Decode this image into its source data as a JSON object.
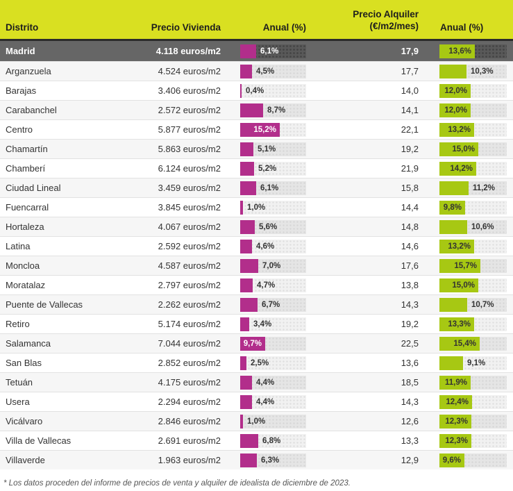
{
  "table": {
    "header": {
      "district": "Distrito",
      "price": "Precio Vivienda",
      "annual_sale": "Anual (%)",
      "rent_line1": "Precio Alquiler",
      "rent_line2": "(€/m2/mes)",
      "annual_rent": "Anual (%)"
    },
    "footnote": "* Los datos proceden del informe de precios de venta y alquiler de idealista de diciembre de 2023."
  },
  "colors": {
    "header_bg": "#d9e021",
    "sale_bar": "#b22e8b",
    "rent_bar": "#a7c813",
    "highlight_row_bg": "#666666"
  },
  "chart_data": {
    "type": "table",
    "columns": [
      "Distrito",
      "Precio Vivienda",
      "Anual (%)",
      "Precio Alquiler (€/m2/mes)",
      "Anual (%)"
    ],
    "bar_columns": {
      "annual_sale_pct": {
        "color": "#b22e8b",
        "range": [
          0,
          15.7
        ]
      },
      "annual_rent_pct": {
        "color": "#a7c813",
        "range": [
          0,
          15.7
        ]
      }
    },
    "rows": [
      {
        "district": "Madrid",
        "price": "4.118 euros/m2",
        "annual_sale_pct": 6.1,
        "annual_sale_label": "6,1%",
        "rent": "17,9",
        "annual_rent_pct": 13.6,
        "annual_rent_label": "13,6%",
        "highlight": true
      },
      {
        "district": "Arganzuela",
        "price": "4.524 euros/m2",
        "annual_sale_pct": 4.5,
        "annual_sale_label": "4,5%",
        "rent": "17,7",
        "annual_rent_pct": 10.3,
        "annual_rent_label": "10,3%",
        "highlight": false
      },
      {
        "district": "Barajas",
        "price": "3.406 euros/m2",
        "annual_sale_pct": 0.4,
        "annual_sale_label": "0,4%",
        "rent": "14,0",
        "annual_rent_pct": 12.0,
        "annual_rent_label": "12,0%",
        "highlight": false
      },
      {
        "district": "Carabanchel",
        "price": "2.572 euros/m2",
        "annual_sale_pct": 8.7,
        "annual_sale_label": "8,7%",
        "rent": "14,1",
        "annual_rent_pct": 12.0,
        "annual_rent_label": "12,0%",
        "highlight": false
      },
      {
        "district": "Centro",
        "price": "5.877 euros/m2",
        "annual_sale_pct": 15.2,
        "annual_sale_label": "15,2%",
        "rent": "22,1",
        "annual_rent_pct": 13.2,
        "annual_rent_label": "13,2%",
        "highlight": false
      },
      {
        "district": "Chamartín",
        "price": "5.863 euros/m2",
        "annual_sale_pct": 5.1,
        "annual_sale_label": "5,1%",
        "rent": "19,2",
        "annual_rent_pct": 15.0,
        "annual_rent_label": "15,0%",
        "highlight": false
      },
      {
        "district": "Chamberí",
        "price": "6.124 euros/m2",
        "annual_sale_pct": 5.2,
        "annual_sale_label": "5,2%",
        "rent": "21,9",
        "annual_rent_pct": 14.2,
        "annual_rent_label": "14,2%",
        "highlight": false
      },
      {
        "district": "Ciudad Lineal",
        "price": "3.459 euros/m2",
        "annual_sale_pct": 6.1,
        "annual_sale_label": "6,1%",
        "rent": "15,8",
        "annual_rent_pct": 11.2,
        "annual_rent_label": "11,2%",
        "highlight": false
      },
      {
        "district": "Fuencarral",
        "price": "3.845 euros/m2",
        "annual_sale_pct": 1.0,
        "annual_sale_label": "1,0%",
        "rent": "14,4",
        "annual_rent_pct": 9.8,
        "annual_rent_label": "9,8%",
        "highlight": false
      },
      {
        "district": "Hortaleza",
        "price": "4.067 euros/m2",
        "annual_sale_pct": 5.6,
        "annual_sale_label": "5,6%",
        "rent": "14,8",
        "annual_rent_pct": 10.6,
        "annual_rent_label": "10,6%",
        "highlight": false
      },
      {
        "district": "Latina",
        "price": "2.592 euros/m2",
        "annual_sale_pct": 4.6,
        "annual_sale_label": "4,6%",
        "rent": "14,6",
        "annual_rent_pct": 13.2,
        "annual_rent_label": "13,2%",
        "highlight": false
      },
      {
        "district": "Moncloa",
        "price": "4.587 euros/m2",
        "annual_sale_pct": 7.0,
        "annual_sale_label": "7,0%",
        "rent": "17,6",
        "annual_rent_pct": 15.7,
        "annual_rent_label": "15,7%",
        "highlight": false
      },
      {
        "district": "Moratalaz",
        "price": "2.797 euros/m2",
        "annual_sale_pct": 4.7,
        "annual_sale_label": "4,7%",
        "rent": "13,8",
        "annual_rent_pct": 15.0,
        "annual_rent_label": "15,0%",
        "highlight": false
      },
      {
        "district": "Puente de Vallecas",
        "price": "2.262 euros/m2",
        "annual_sale_pct": 6.7,
        "annual_sale_label": "6,7%",
        "rent": "14,3",
        "annual_rent_pct": 10.7,
        "annual_rent_label": "10,7%",
        "highlight": false
      },
      {
        "district": "Retiro",
        "price": "5.174 euros/m2",
        "annual_sale_pct": 3.4,
        "annual_sale_label": "3,4%",
        "rent": "19,2",
        "annual_rent_pct": 13.3,
        "annual_rent_label": "13,3%",
        "highlight": false
      },
      {
        "district": "Salamanca",
        "price": "7.044 euros/m2",
        "annual_sale_pct": 9.7,
        "annual_sale_label": "9,7%",
        "rent": "22,5",
        "annual_rent_pct": 15.4,
        "annual_rent_label": "15,4%",
        "highlight": false
      },
      {
        "district": "San Blas",
        "price": "2.852 euros/m2",
        "annual_sale_pct": 2.5,
        "annual_sale_label": "2,5%",
        "rent": "13,6",
        "annual_rent_pct": 9.1,
        "annual_rent_label": "9,1%",
        "highlight": false
      },
      {
        "district": "Tetuán",
        "price": "4.175 euros/m2",
        "annual_sale_pct": 4.4,
        "annual_sale_label": "4,4%",
        "rent": "18,5",
        "annual_rent_pct": 11.9,
        "annual_rent_label": "11,9%",
        "highlight": false
      },
      {
        "district": "Usera",
        "price": "2.294 euros/m2",
        "annual_sale_pct": 4.4,
        "annual_sale_label": "4,4%",
        "rent": "14,3",
        "annual_rent_pct": 12.4,
        "annual_rent_label": "12,4%",
        "highlight": false
      },
      {
        "district": "Vicálvaro",
        "price": "2.846 euros/m2",
        "annual_sale_pct": 1.0,
        "annual_sale_label": "1,0%",
        "rent": "12,6",
        "annual_rent_pct": 12.3,
        "annual_rent_label": "12,3%",
        "highlight": false
      },
      {
        "district": "Villa de Vallecas",
        "price": "2.691 euros/m2",
        "annual_sale_pct": 6.8,
        "annual_sale_label": "6,8%",
        "rent": "13,3",
        "annual_rent_pct": 12.3,
        "annual_rent_label": "12,3%",
        "highlight": false
      },
      {
        "district": "Villaverde",
        "price": "1.963 euros/m2",
        "annual_sale_pct": 6.3,
        "annual_sale_label": "6,3%",
        "rent": "12,9",
        "annual_rent_pct": 9.6,
        "annual_rent_label": "9,6%",
        "highlight": false
      }
    ]
  }
}
